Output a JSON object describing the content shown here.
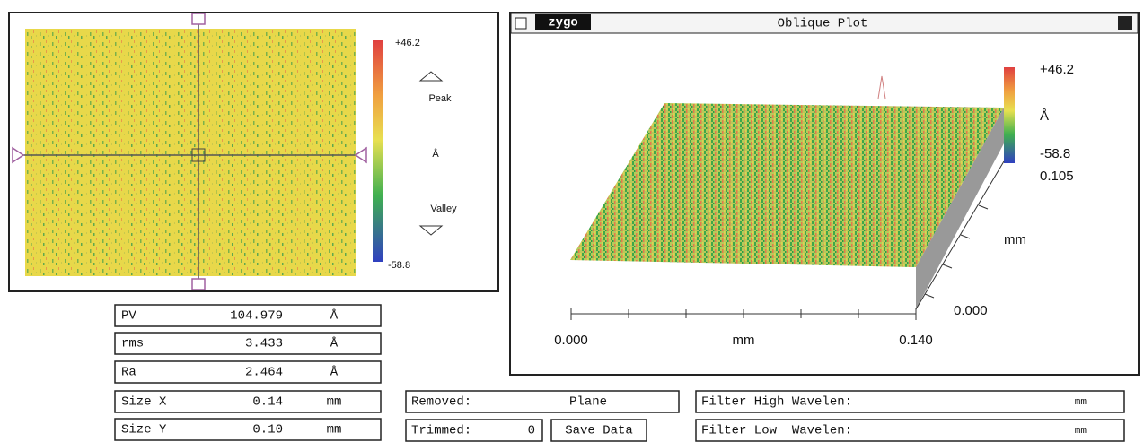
{
  "map_panel": {
    "scale_max": "+46.2",
    "peak": "Peak",
    "unit": "Å",
    "valley": "Valley",
    "scale_min": "-58.8"
  },
  "plot_panel": {
    "logo": "zygo",
    "title": "Oblique Plot",
    "scale_max": "+46.2",
    "unit": "Å",
    "scale_min": "-58.8",
    "y_max": "0.105",
    "y_unit": "mm",
    "y_min": "0.000",
    "x_min": "0.000",
    "x_unit": "mm",
    "x_max": "0.140"
  },
  "stats": [
    [
      "PV",
      "104.979",
      "Å"
    ],
    [
      "rms",
      "3.433",
      "Å"
    ],
    [
      "Ra",
      "2.464",
      "Å"
    ],
    [
      "Size X",
      "0.14",
      "mm"
    ],
    [
      "Size Y",
      "0.10",
      "mm"
    ]
  ],
  "controls": {
    "removed_label": "Removed:",
    "removed_value": "Plane",
    "trimmed_label": "Trimmed:",
    "trimmed_value": "0",
    "save_button": "Save Data",
    "filter_high_label": "Filter High Wavelen:",
    "filter_high_unit": "mm",
    "filter_low_label": "Filter Low  Wavelen:",
    "filter_low_unit": "mm"
  }
}
